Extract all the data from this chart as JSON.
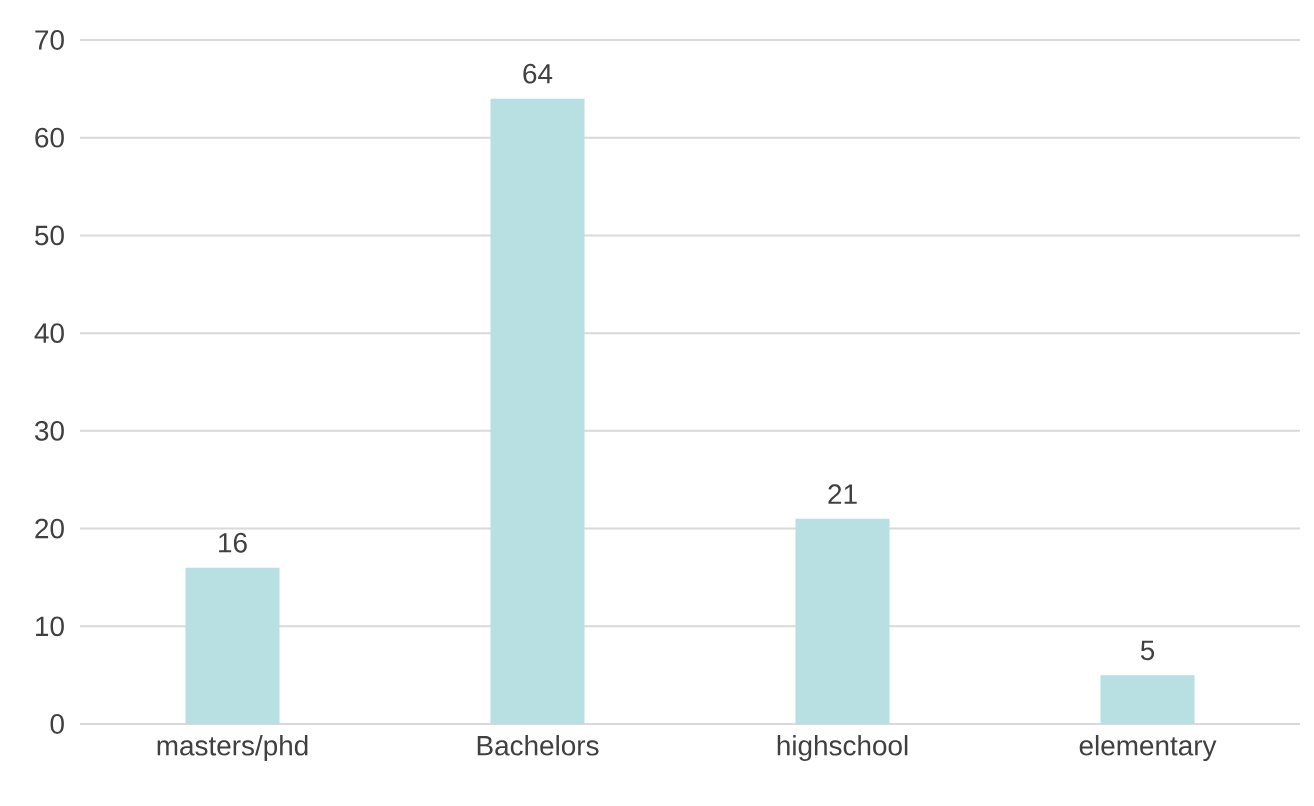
{
  "chart_data": {
    "type": "bar",
    "categories": [
      "masters/phd",
      "Bachelors",
      "highschool",
      "elementary"
    ],
    "values": [
      16,
      64,
      21,
      5
    ],
    "color": "#b8dfe1",
    "ylim": [
      0,
      70
    ],
    "yticks": [
      0,
      10,
      20,
      30,
      40,
      50,
      60,
      70
    ],
    "grid": "y",
    "data_labels": true
  }
}
